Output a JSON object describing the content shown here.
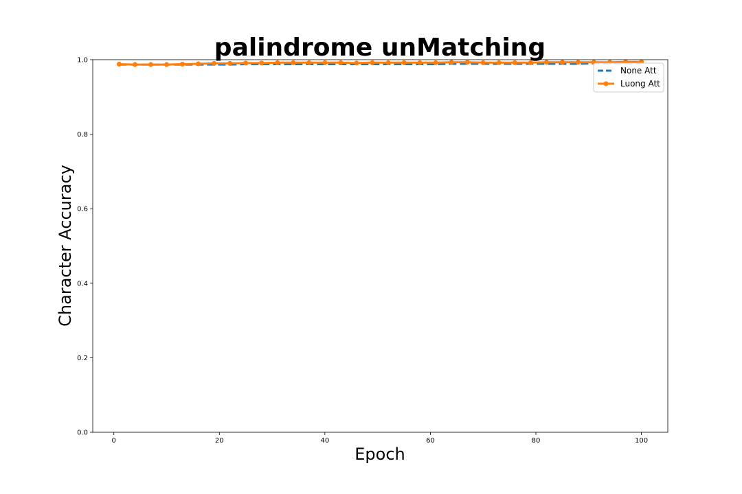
{
  "chart_data": {
    "type": "line",
    "title": "palindrome unMatching",
    "xlabel": "Epoch",
    "ylabel": "Character Accuracy",
    "xlim": [
      -4,
      105
    ],
    "ylim": [
      0.0,
      1.0
    ],
    "xticks": [
      0,
      20,
      40,
      60,
      80,
      100
    ],
    "yticks": [
      0.0,
      0.2,
      0.4,
      0.6,
      0.8,
      1.0
    ],
    "grid": false,
    "legend_position": "top-right",
    "series": [
      {
        "name": "None Att",
        "color": "#1f77b4",
        "style": "dashed",
        "x": [
          1,
          4,
          7,
          10,
          13,
          16,
          19,
          22,
          25,
          28,
          31,
          34,
          37,
          40,
          43,
          46,
          49,
          52,
          55,
          58,
          61,
          64,
          67,
          70,
          73,
          76,
          79,
          82,
          85,
          88,
          91,
          94,
          97,
          100
        ],
        "y": [
          0.987,
          0.987,
          0.987,
          0.987,
          0.987,
          0.987,
          0.987,
          0.987,
          0.988,
          0.988,
          0.988,
          0.988,
          0.988,
          0.988,
          0.988,
          0.988,
          0.988,
          0.988,
          0.988,
          0.988,
          0.988,
          0.989,
          0.989,
          0.989,
          0.989,
          0.989,
          0.989,
          0.989,
          0.989,
          0.989,
          0.99,
          0.99,
          0.99,
          0.99
        ]
      },
      {
        "name": "Luong Att",
        "color": "#ff7f0e",
        "style": "solid-markers",
        "x": [
          1,
          4,
          7,
          10,
          13,
          16,
          19,
          22,
          25,
          28,
          31,
          34,
          37,
          40,
          43,
          46,
          49,
          52,
          55,
          58,
          61,
          64,
          67,
          70,
          73,
          76,
          79,
          82,
          85,
          88,
          91,
          94,
          97,
          100
        ],
        "y": [
          0.988,
          0.987,
          0.987,
          0.987,
          0.988,
          0.989,
          0.99,
          0.99,
          0.991,
          0.991,
          0.992,
          0.992,
          0.992,
          0.992,
          0.992,
          0.991,
          0.992,
          0.992,
          0.992,
          0.992,
          0.992,
          0.993,
          0.993,
          0.992,
          0.992,
          0.992,
          0.992,
          0.993,
          0.993,
          0.993,
          0.993,
          0.993,
          0.994,
          0.994
        ]
      }
    ]
  }
}
